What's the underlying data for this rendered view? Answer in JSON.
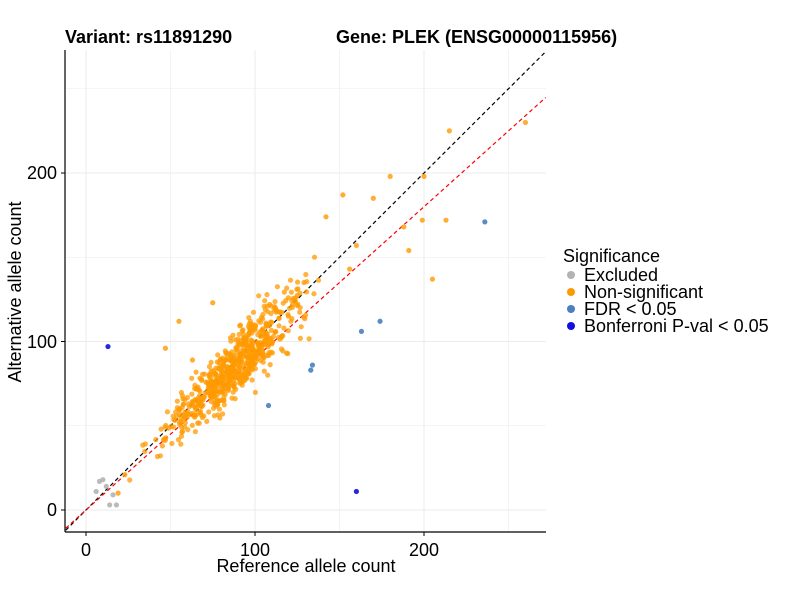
{
  "chart_data": {
    "type": "scatter",
    "title_left": "Variant: rs11891290",
    "title_right": "Gene: PLEK (ENSG00000115956)",
    "xlabel": "Reference allele count",
    "ylabel": "Alternative allele count",
    "xlim": [
      -12,
      272
    ],
    "ylim": [
      -13,
      272
    ],
    "xticks": [
      0,
      100,
      200
    ],
    "yticks": [
      0,
      100,
      200
    ],
    "grid": true,
    "legend": {
      "title": "Significance",
      "placement": "right",
      "entries": [
        {
          "label": "Excluded",
          "color": "#b3b3b3"
        },
        {
          "label": "Non-significant",
          "color": "#ff9900"
        },
        {
          "label": "FDR < 0.05",
          "color": "#4a7fc1"
        },
        {
          "label": "Bonferroni P-val < 0.05",
          "color": "#1010e0"
        }
      ]
    },
    "reference_lines": [
      {
        "name": "identity",
        "slope": 1.0,
        "intercept": 0,
        "color": "#000000",
        "style": "dashed"
      },
      {
        "name": "fitted",
        "slope": 0.9,
        "intercept": 0,
        "color": "#ff0000",
        "style": "dashed"
      }
    ],
    "series": [
      {
        "name": "Excluded",
        "color": "#b3b3b3",
        "points": [
          [
            6,
            11
          ],
          [
            8,
            17
          ],
          [
            10,
            18
          ],
          [
            14,
            3
          ],
          [
            18,
            3
          ],
          [
            16,
            9
          ],
          [
            12,
            14
          ]
        ]
      },
      {
        "name": "FDR < 0.05",
        "color": "#4a7fc1",
        "points": [
          [
            133,
            83
          ],
          [
            134,
            86
          ],
          [
            108,
            62
          ],
          [
            163,
            106
          ],
          [
            174,
            112
          ],
          [
            236,
            171
          ]
        ]
      },
      {
        "name": "Bonferroni P-val < 0.05",
        "color": "#1010e0",
        "points": [
          [
            13,
            97
          ],
          [
            160,
            11
          ]
        ]
      },
      {
        "name": "Non-significant",
        "color": "#ff9900",
        "n_points": 650,
        "summary": "Dense cloud along identity line, x range ~10-260, alternative ~ 0.95 x reference with spread",
        "highlights": [
          [
            215,
            225
          ],
          [
            260,
            230
          ],
          [
            180,
            198
          ],
          [
            200,
            198
          ],
          [
            152,
            187
          ],
          [
            170,
            185
          ],
          [
            142,
            174
          ],
          [
            199,
            172
          ],
          [
            213,
            172
          ],
          [
            188,
            168
          ],
          [
            160,
            157
          ],
          [
            191,
            154
          ],
          [
            156,
            143
          ],
          [
            205,
            137
          ],
          [
            129,
            135
          ],
          [
            112,
            120
          ],
          [
            75,
            123
          ],
          [
            63,
            89
          ],
          [
            55,
            112
          ],
          [
            47,
            96
          ],
          [
            23,
            21
          ],
          [
            19,
            10
          ]
        ]
      }
    ]
  }
}
